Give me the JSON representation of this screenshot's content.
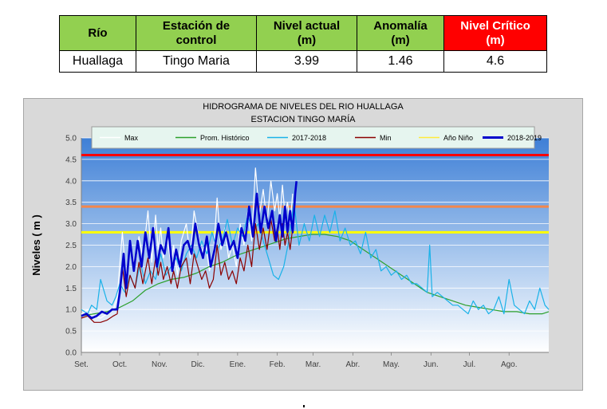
{
  "table": {
    "headers": [
      {
        "line1": "Río",
        "line2": ""
      },
      {
        "line1": "Estación de",
        "line2": "control"
      },
      {
        "line1": "Nivel actual",
        "line2": "(m)"
      },
      {
        "line1": "Anomalía",
        "line2": "(m)"
      },
      {
        "line1": "Nivel Crítico",
        "line2": "(m)"
      }
    ],
    "row": [
      "Huallaga",
      "Tingo Maria",
      "3.99",
      "1.46",
      "4.6"
    ],
    "header_color": "#92d050",
    "critical_header_color": "#ff0000"
  },
  "chart_data": {
    "type": "line",
    "title": "HIDROGRAMA DE NIVELES DEL RIO HUALLAGA",
    "subtitle": "ESTACION TINGO MARÍA",
    "ylabel": "Niveles ( m )",
    "xlabel": "",
    "ylim": [
      0,
      5
    ],
    "yticks": [
      "0.0",
      "0.5",
      "1.0",
      "1.5",
      "2.0",
      "2.5",
      "3.0",
      "3.5",
      "4.0",
      "4.5",
      "5.0"
    ],
    "x_range_days": [
      0,
      365
    ],
    "xticks": [
      {
        "label": "Set.",
        "day": 0
      },
      {
        "label": "Oct.",
        "day": 30
      },
      {
        "label": "Nov.",
        "day": 61
      },
      {
        "label": "Dic.",
        "day": 91
      },
      {
        "label": "Ene.",
        "day": 122
      },
      {
        "label": "Feb.",
        "day": 153
      },
      {
        "label": "Mar.",
        "day": 181
      },
      {
        "label": "Abr.",
        "day": 212
      },
      {
        "label": "May.",
        "day": 242
      },
      {
        "label": "Jun.",
        "day": 273
      },
      {
        "label": "Jul.",
        "day": 303
      },
      {
        "label": "Ago.",
        "day": 334
      }
    ],
    "grid": true,
    "legend_position": "top",
    "reference_lines": [
      {
        "value": 4.6,
        "color": "#ff0000"
      },
      {
        "value": 3.4,
        "color": "#f4874b"
      },
      {
        "value": 2.8,
        "color": "#ffff00"
      }
    ],
    "series": [
      {
        "name": "Max",
        "color": "#ffffff",
        "width": 1.2,
        "x": [
          0,
          5,
          10,
          15,
          20,
          25,
          28,
          32,
          35,
          38,
          42,
          45,
          48,
          52,
          55,
          58,
          60,
          62,
          64,
          67,
          70,
          72,
          75,
          78,
          82,
          85,
          88,
          91,
          94,
          97,
          100,
          103,
          106,
          109,
          112,
          115,
          118,
          121,
          124,
          127,
          130,
          133,
          136,
          139,
          142,
          145,
          148,
          151,
          153,
          155,
          157,
          159,
          161,
          163,
          165
        ],
        "y": [
          0.9,
          1.0,
          0.85,
          0.8,
          0.9,
          1.0,
          1.3,
          2.8,
          1.7,
          2.5,
          2.0,
          2.7,
          2.2,
          3.3,
          2.1,
          3.2,
          2.4,
          2.9,
          2.2,
          2.7,
          2.0,
          2.5,
          1.8,
          2.6,
          3.0,
          2.2,
          3.3,
          2.8,
          2.3,
          2.6,
          1.9,
          2.2,
          3.6,
          2.4,
          2.9,
          2.2,
          2.5,
          2.0,
          3.0,
          2.5,
          3.3,
          2.6,
          4.3,
          3.2,
          3.8,
          3.0,
          4.0,
          3.3,
          3.7,
          3.1,
          3.9,
          3.2,
          3.5,
          3.0,
          3.7
        ]
      },
      {
        "name": "Prom. Histórico",
        "color": "#2ca02c",
        "width": 1.2,
        "x": [
          0,
          10,
          20,
          30,
          40,
          50,
          60,
          70,
          80,
          90,
          100,
          110,
          120,
          130,
          140,
          150,
          160,
          170,
          180,
          190,
          200,
          210,
          220,
          230,
          240,
          250,
          260,
          270,
          280,
          290,
          300,
          310,
          320,
          330,
          340,
          350,
          360,
          365
        ],
        "y": [
          0.85,
          0.9,
          0.95,
          1.05,
          1.2,
          1.45,
          1.6,
          1.7,
          1.75,
          1.85,
          2.0,
          2.1,
          2.25,
          2.35,
          2.45,
          2.55,
          2.65,
          2.7,
          2.75,
          2.75,
          2.7,
          2.6,
          2.4,
          2.2,
          2.0,
          1.8,
          1.6,
          1.4,
          1.3,
          1.2,
          1.1,
          1.05,
          1.0,
          0.95,
          0.95,
          0.9,
          0.9,
          0.95
        ]
      },
      {
        "name": "2017-2018",
        "color": "#1ab2e8",
        "width": 1.2,
        "x": [
          0,
          5,
          8,
          12,
          15,
          20,
          24,
          27,
          30,
          34,
          38,
          42,
          46,
          50,
          54,
          58,
          62,
          66,
          70,
          74,
          78,
          82,
          86,
          90,
          94,
          98,
          102,
          106,
          110,
          114,
          118,
          122,
          126,
          130,
          134,
          138,
          142,
          146,
          150,
          154,
          158,
          162,
          166,
          170,
          174,
          178,
          182,
          186,
          190,
          194,
          198,
          202,
          206,
          210,
          214,
          218,
          222,
          226,
          230,
          234,
          238,
          242,
          246,
          250,
          254,
          258,
          262,
          266,
          270,
          272,
          274,
          278,
          282,
          286,
          290,
          294,
          298,
          302,
          306,
          310,
          314,
          318,
          322,
          326,
          330,
          334,
          338,
          342,
          346,
          350,
          354,
          358,
          362,
          365
        ],
        "y": [
          1.0,
          0.9,
          1.1,
          1.0,
          1.7,
          1.2,
          1.1,
          1.3,
          1.6,
          1.4,
          1.8,
          1.5,
          2.1,
          1.6,
          1.9,
          1.7,
          2.3,
          1.8,
          2.0,
          2.2,
          1.9,
          2.3,
          2.5,
          2.2,
          2.6,
          2.3,
          2.8,
          2.4,
          2.6,
          3.1,
          2.5,
          2.9,
          2.7,
          3.2,
          2.8,
          3.0,
          2.6,
          2.2,
          1.8,
          1.7,
          2.0,
          2.6,
          3.5,
          2.5,
          3.0,
          2.6,
          3.2,
          2.7,
          3.2,
          2.8,
          3.3,
          2.6,
          2.9,
          2.5,
          2.6,
          2.3,
          2.8,
          2.2,
          2.4,
          1.9,
          2.0,
          1.8,
          1.9,
          1.7,
          1.8,
          1.6,
          1.6,
          1.5,
          1.4,
          2.5,
          1.3,
          1.4,
          1.3,
          1.2,
          1.1,
          1.1,
          1.0,
          0.9,
          1.2,
          1.0,
          1.1,
          0.9,
          1.0,
          1.3,
          0.9,
          1.7,
          1.1,
          1.0,
          0.9,
          1.2,
          1.0,
          1.5,
          1.1,
          1.0
        ]
      },
      {
        "name": "Min",
        "color": "#8b0000",
        "width": 1.2,
        "x": [
          0,
          5,
          10,
          15,
          20,
          25,
          28,
          32,
          35,
          38,
          42,
          45,
          48,
          52,
          55,
          58,
          60,
          62,
          64,
          67,
          70,
          72,
          75,
          78,
          82,
          85,
          88,
          91,
          94,
          97,
          100,
          103,
          106,
          109,
          112,
          115,
          118,
          121,
          124,
          127,
          130,
          133,
          136,
          139,
          142,
          145,
          148,
          151,
          153,
          155,
          157,
          159,
          161,
          163,
          165
        ],
        "y": [
          0.8,
          0.85,
          0.7,
          0.7,
          0.75,
          0.85,
          0.9,
          2.0,
          1.3,
          1.8,
          1.5,
          2.1,
          1.6,
          2.2,
          1.6,
          2.2,
          1.8,
          2.1,
          1.7,
          2.0,
          1.6,
          1.9,
          1.5,
          2.0,
          2.2,
          1.6,
          2.3,
          2.0,
          1.7,
          1.9,
          1.5,
          1.7,
          2.5,
          1.8,
          2.1,
          1.7,
          1.9,
          1.6,
          2.2,
          1.9,
          2.5,
          2.0,
          3.0,
          2.4,
          2.9,
          2.4,
          3.1,
          2.6,
          2.9,
          2.4,
          3.0,
          2.5,
          2.8,
          2.4,
          2.9
        ]
      },
      {
        "name": "Año Niño",
        "color": "#ffeb3b",
        "width": 1.2,
        "x": [],
        "y": []
      },
      {
        "name": "2018-2019",
        "color": "#0000cc",
        "width": 2.6,
        "x": [
          0,
          4,
          8,
          12,
          16,
          20,
          24,
          28,
          30,
          33,
          35,
          38,
          41,
          44,
          47,
          50,
          53,
          56,
          59,
          62,
          65,
          68,
          71,
          74,
          77,
          80,
          83,
          86,
          89,
          92,
          95,
          98,
          101,
          104,
          107,
          110,
          113,
          116,
          119,
          122,
          125,
          128,
          131,
          134,
          137,
          140,
          143,
          146,
          149,
          152,
          155,
          157,
          159,
          161,
          163,
          165,
          167,
          168
        ],
        "y": [
          0.85,
          0.9,
          0.8,
          0.85,
          0.95,
          0.9,
          1.0,
          1.0,
          1.4,
          2.3,
          1.5,
          2.6,
          1.9,
          2.6,
          2.0,
          2.8,
          2.2,
          2.9,
          2.0,
          2.5,
          2.3,
          2.9,
          1.9,
          2.4,
          2.0,
          2.5,
          2.6,
          2.3,
          3.0,
          2.5,
          2.2,
          2.7,
          2.0,
          2.4,
          3.0,
          2.5,
          2.8,
          2.4,
          2.6,
          2.2,
          2.9,
          2.6,
          3.4,
          2.7,
          3.7,
          2.8,
          3.4,
          2.9,
          3.3,
          2.6,
          3.2,
          2.7,
          3.4,
          2.8,
          3.3,
          2.8,
          3.7,
          3.99
        ]
      }
    ]
  }
}
